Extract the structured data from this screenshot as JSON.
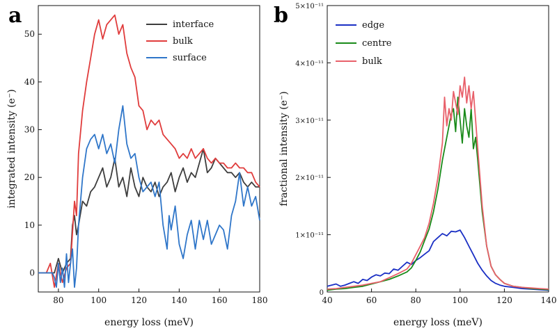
{
  "chart_data": [
    {
      "type": "line",
      "panel_label": "a",
      "xlabel": "energy loss (meV)",
      "ylabel": "integrated intensity (e⁻)",
      "xlim": [
        70,
        180
      ],
      "ylim": [
        -4,
        56
      ],
      "xticks": [
        80,
        100,
        120,
        140,
        160,
        180
      ],
      "yticks": [
        0,
        10,
        20,
        30,
        40,
        50
      ],
      "legend_position": "top-right",
      "series": [
        {
          "name": "interface",
          "color": "#3d3d3d",
          "x": [
            70,
            74,
            78,
            80,
            82,
            84,
            86,
            87,
            88,
            89,
            90,
            92,
            94,
            96,
            98,
            100,
            102,
            104,
            106,
            108,
            110,
            112,
            114,
            116,
            118,
            120,
            122,
            124,
            126,
            128,
            130,
            132,
            134,
            136,
            138,
            140,
            142,
            144,
            146,
            148,
            150,
            152,
            154,
            156,
            158,
            160,
            162,
            164,
            166,
            168,
            170,
            172,
            174,
            176,
            178,
            180
          ],
          "y": [
            0,
            0,
            0,
            3,
            0,
            2,
            3,
            10,
            12,
            8,
            10,
            15,
            14,
            17,
            18,
            20,
            22,
            18,
            20,
            24,
            18,
            20,
            16,
            22,
            18,
            16,
            20,
            18,
            17,
            19,
            16,
            18,
            19,
            21,
            17,
            20,
            22,
            19,
            21,
            20,
            23,
            26,
            21,
            22,
            24,
            23,
            22,
            21,
            21,
            20,
            21,
            19,
            18,
            19,
            18,
            18
          ]
        },
        {
          "name": "bulk",
          "color": "#e03c3c",
          "x": [
            70,
            74,
            76,
            78,
            80,
            82,
            84,
            86,
            88,
            89,
            90,
            92,
            94,
            96,
            98,
            100,
            102,
            104,
            106,
            108,
            110,
            112,
            114,
            116,
            118,
            120,
            122,
            124,
            126,
            128,
            130,
            132,
            134,
            136,
            138,
            140,
            142,
            144,
            146,
            148,
            150,
            152,
            154,
            156,
            158,
            160,
            162,
            164,
            166,
            168,
            170,
            172,
            174,
            176,
            178,
            180
          ],
          "y": [
            0,
            0,
            2,
            -3,
            2,
            -2,
            1,
            2,
            15,
            12,
            25,
            34,
            40,
            45,
            50,
            53,
            49,
            52,
            53,
            54,
            50,
            52,
            46,
            43,
            41,
            35,
            34,
            30,
            32,
            31,
            32,
            29,
            28,
            27,
            26,
            24,
            25,
            24,
            26,
            24,
            25,
            26,
            24,
            23,
            24,
            23,
            23,
            22,
            22,
            23,
            22,
            22,
            21,
            21,
            19,
            18
          ]
        },
        {
          "name": "surface",
          "color": "#2f76c9",
          "x": [
            70,
            74,
            77,
            78,
            79,
            80,
            81,
            82,
            83,
            84,
            85,
            86,
            87,
            88,
            89,
            90,
            92,
            94,
            96,
            98,
            100,
            102,
            104,
            106,
            108,
            110,
            112,
            114,
            116,
            118,
            120,
            122,
            124,
            126,
            128,
            130,
            132,
            134,
            135,
            136,
            138,
            140,
            142,
            144,
            146,
            148,
            150,
            152,
            154,
            156,
            158,
            160,
            162,
            164,
            166,
            168,
            170,
            172,
            174,
            176,
            178,
            180
          ],
          "y": [
            0,
            0,
            0,
            -1,
            -3,
            2,
            -2,
            1,
            -3,
            4,
            -2,
            2,
            5,
            -3,
            1,
            10,
            20,
            26,
            28,
            29,
            26,
            29,
            25,
            27,
            23,
            30,
            35,
            27,
            24,
            25,
            20,
            17,
            18,
            19,
            16,
            19,
            10,
            5,
            12,
            9,
            14,
            6,
            3,
            8,
            11,
            5,
            11,
            7,
            11,
            6,
            8,
            10,
            9,
            5,
            12,
            15,
            21,
            14,
            18,
            14,
            16,
            11
          ]
        }
      ]
    },
    {
      "type": "line",
      "panel_label": "b",
      "xlabel": "energy loss (meV)",
      "ylabel": "fractional intensity (e⁻)",
      "xlim": [
        40,
        140
      ],
      "ylim": [
        0,
        5
      ],
      "y_unit_label": "×10⁻¹¹",
      "xticks": [
        40,
        60,
        80,
        100,
        120,
        140
      ],
      "yticks": [
        0,
        1,
        2,
        3,
        4,
        5
      ],
      "ytick_labels": [
        "0",
        "1×10⁻¹¹",
        "2×10⁻¹¹",
        "3×10⁻¹¹",
        "4×10⁻¹¹",
        "5×10⁻¹¹"
      ],
      "legend_position": "top-left",
      "series": [
        {
          "name": "edge",
          "color": "#1a2fc4",
          "x": [
            40,
            44,
            46,
            48,
            50,
            52,
            54,
            56,
            58,
            60,
            62,
            64,
            66,
            68,
            70,
            72,
            74,
            76,
            78,
            80,
            82,
            84,
            86,
            88,
            90,
            92,
            94,
            96,
            98,
            100,
            102,
            104,
            106,
            108,
            110,
            112,
            114,
            116,
            118,
            120,
            124,
            128,
            132,
            136,
            140
          ],
          "y": [
            0.1,
            0.14,
            0.1,
            0.12,
            0.15,
            0.18,
            0.15,
            0.22,
            0.2,
            0.26,
            0.3,
            0.28,
            0.33,
            0.32,
            0.4,
            0.38,
            0.45,
            0.52,
            0.48,
            0.55,
            0.6,
            0.66,
            0.72,
            0.88,
            0.95,
            1.02,
            0.98,
            1.06,
            1.05,
            1.08,
            0.95,
            0.8,
            0.65,
            0.5,
            0.38,
            0.28,
            0.2,
            0.15,
            0.12,
            0.1,
            0.08,
            0.06,
            0.05,
            0.04,
            0.03
          ]
        },
        {
          "name": "centre",
          "color": "#198a19",
          "x": [
            40,
            44,
            48,
            52,
            56,
            60,
            64,
            68,
            72,
            76,
            78,
            80,
            82,
            84,
            86,
            88,
            90,
            92,
            94,
            96,
            97,
            98,
            99,
            100,
            101,
            102,
            103,
            104,
            105,
            106,
            107,
            108,
            110,
            112,
            114,
            116,
            118,
            120,
            124,
            128,
            132,
            136,
            140
          ],
          "y": [
            0.03,
            0.05,
            0.06,
            0.08,
            0.1,
            0.14,
            0.18,
            0.22,
            0.28,
            0.35,
            0.42,
            0.55,
            0.7,
            0.9,
            1.1,
            1.4,
            1.8,
            2.3,
            2.7,
            3.1,
            3.2,
            2.8,
            3.4,
            3.0,
            2.6,
            3.2,
            2.9,
            2.7,
            3.2,
            2.5,
            2.7,
            2.3,
            1.4,
            0.8,
            0.45,
            0.3,
            0.22,
            0.15,
            0.1,
            0.08,
            0.06,
            0.05,
            0.04
          ]
        },
        {
          "name": "bulk",
          "color": "#e8606a",
          "x": [
            40,
            44,
            48,
            52,
            56,
            60,
            64,
            68,
            72,
            76,
            78,
            80,
            82,
            84,
            86,
            88,
            90,
            92,
            93,
            94,
            95,
            96,
            97,
            98,
            99,
            100,
            101,
            102,
            103,
            104,
            105,
            106,
            107,
            108,
            110,
            112,
            114,
            116,
            118,
            120,
            124,
            128,
            132,
            136,
            140
          ],
          "y": [
            0.05,
            0.06,
            0.08,
            0.1,
            0.12,
            0.15,
            0.18,
            0.25,
            0.32,
            0.4,
            0.5,
            0.65,
            0.8,
            0.95,
            1.2,
            1.55,
            2.0,
            2.6,
            3.4,
            2.9,
            3.2,
            3.0,
            3.5,
            3.3,
            3.1,
            3.6,
            3.4,
            3.75,
            3.3,
            3.6,
            3.2,
            3.5,
            3.0,
            2.5,
            1.5,
            0.8,
            0.45,
            0.3,
            0.22,
            0.15,
            0.1,
            0.08,
            0.07,
            0.06,
            0.05
          ]
        }
      ]
    }
  ]
}
